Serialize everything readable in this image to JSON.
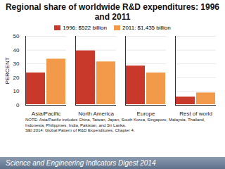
{
  "chart_data": {
    "type": "bar",
    "title": "Regional share of worldwide R&D expenditures: 1996 and 2011",
    "categories": [
      "Asia/Pacific",
      "North America",
      "Europe",
      "Rest of world"
    ],
    "series": [
      {
        "name": "1996: $522 billion",
        "color": "#c8392c",
        "values": [
          24,
          40,
          29,
          6.5
        ]
      },
      {
        "name": "2011: $1,435 billion",
        "color": "#f29a4a",
        "values": [
          34,
          32,
          24,
          9.5
        ]
      }
    ],
    "ylabel": "PERCENT",
    "ylim": [
      0,
      50
    ],
    "yticks": [
      0,
      10,
      20,
      30,
      40,
      50
    ],
    "grid": true,
    "legend": "top",
    "notes": [
      "NOTE: Asia/Pacific includes China, Taiwan, Japan, South Korea, Singapore, Malaysia, Thailand, Indonesia, Philippines, India, Pakistan, and Sri Lanka.",
      "SEI 2014: Global Pattern of R&D Expenditures, Chapter 4."
    ],
    "footer": "Science and Engineering Indicators Digest 2014"
  }
}
